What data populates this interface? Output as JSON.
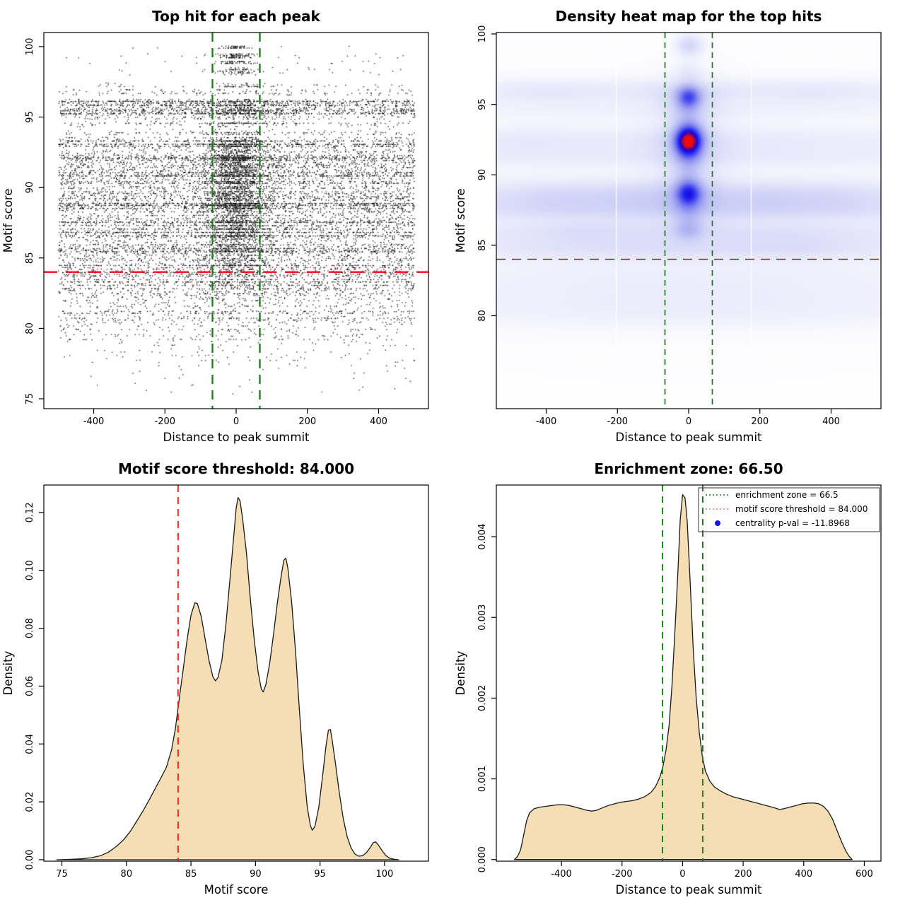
{
  "figure": {
    "background": "#ffffff"
  },
  "chart_data": [
    {
      "type": "scatter",
      "title": "Top hit for each peak",
      "xlabel": "Distance to peak summit",
      "ylabel": "Motif score",
      "xlim": [
        -540,
        540
      ],
      "ylim": [
        74.3,
        101.0
      ],
      "xticks": {
        "values": [
          -400,
          -200,
          0,
          200,
          400
        ],
        "labels": [
          "-400",
          "-200",
          "0",
          "200",
          "400"
        ]
      },
      "yticks": {
        "values": [
          75,
          80,
          85,
          90,
          95,
          100
        ],
        "labels": [
          "75",
          "80",
          "85",
          "90",
          "95",
          "100"
        ]
      },
      "point_color": "#000000",
      "seed": 42,
      "x_range": [
        -500,
        500
      ],
      "bands": [
        [
          99.93,
          100.08,
          55,
          0.9,
          20
        ],
        [
          99.25,
          99.6,
          120,
          0.82,
          28
        ],
        [
          98.85,
          99.05,
          70,
          0.85,
          25
        ],
        [
          98.4,
          98.6,
          40,
          0.85,
          22
        ],
        [
          98.05,
          98.3,
          60,
          0.8,
          26
        ],
        [
          97.2,
          97.5,
          80,
          0.6,
          40
        ],
        [
          96.6,
          97.0,
          150,
          0.2,
          120
        ],
        [
          95.9,
          96.3,
          650,
          0.16,
          60
        ],
        [
          95.35,
          95.85,
          800,
          0.2,
          55
        ],
        [
          94.9,
          95.3,
          420,
          0.2,
          55
        ],
        [
          94.35,
          94.8,
          200,
          0.3,
          60
        ],
        [
          93.8,
          94.25,
          170,
          0.35,
          60
        ],
        [
          92.85,
          93.6,
          1050,
          0.28,
          45
        ],
        [
          90.85,
          92.8,
          2600,
          0.3,
          42
        ],
        [
          88.05,
          90.8,
          3300,
          0.28,
          45
        ],
        [
          86.0,
          88.0,
          2200,
          0.26,
          48
        ],
        [
          84.5,
          85.95,
          1650,
          0.22,
          50
        ],
        [
          83.5,
          84.45,
          820,
          0.15,
          60
        ],
        [
          82.0,
          83.45,
          900,
          0.12,
          70
        ],
        [
          80.5,
          81.95,
          520,
          0.1,
          80
        ],
        [
          79.0,
          80.45,
          270,
          0.08,
          90
        ],
        [
          77.4,
          78.95,
          90,
          0.1,
          100
        ],
        [
          75.4,
          77.35,
          35,
          0.15,
          110
        ]
      ],
      "vlines": {
        "x": [
          -66.5,
          66.5
        ],
        "color": "#1c7a1c",
        "dash": "13 9",
        "width": 2.3
      },
      "hline": {
        "y": 84,
        "color": "#e32222",
        "dash": "19 12",
        "width": 2.5
      }
    },
    {
      "type": "heatmap",
      "title": "Density heat map for the top hits",
      "xlabel": "Distance to peak summit",
      "ylabel": "Motif score",
      "xlim": [
        -540,
        540
      ],
      "ylim": [
        73.4,
        100.1
      ],
      "xticks": {
        "values": [
          -400,
          -200,
          0,
          200,
          400
        ],
        "labels": [
          "-400",
          "-200",
          "0",
          "200",
          "400"
        ]
      },
      "yticks": {
        "values": [
          80,
          85,
          90,
          95,
          100
        ],
        "labels": [
          "80",
          "85",
          "90",
          "95",
          "100"
        ]
      },
      "colormap": [
        [
          0,
          "#ffffff"
        ],
        [
          0.07,
          "#f6f6fd"
        ],
        [
          0.18,
          "#e7e8fb"
        ],
        [
          0.32,
          "#cdd0f6"
        ],
        [
          0.46,
          "#a9adf1"
        ],
        [
          0.58,
          "#7e83ee"
        ],
        [
          0.68,
          "#4a4cee"
        ],
        [
          0.77,
          "#1b1bee"
        ],
        [
          0.84,
          "#1a00cf"
        ],
        [
          0.87,
          "#2e00bd"
        ],
        [
          0.91,
          "#d40f0f"
        ],
        [
          1,
          "#f50a0a"
        ]
      ],
      "blobs": [
        [
          0,
          95.9,
          0.16,
          650,
          0.6
        ],
        [
          0,
          94.6,
          0.07,
          650,
          0.5
        ],
        [
          0,
          92.4,
          0.14,
          650,
          0.7
        ],
        [
          0,
          91.2,
          0.1,
          650,
          0.5
        ],
        [
          0,
          88.5,
          0.26,
          650,
          0.75
        ],
        [
          0,
          87.4,
          0.2,
          650,
          0.55
        ],
        [
          0,
          86.0,
          0.18,
          650,
          0.55
        ],
        [
          0,
          84.8,
          0.2,
          650,
          0.6
        ],
        [
          0,
          82.3,
          0.1,
          650,
          1.3
        ],
        [
          0,
          80.3,
          0.08,
          650,
          0.9
        ],
        [
          0,
          88.0,
          0.05,
          650,
          6.0
        ],
        [
          -380,
          88.4,
          0.07,
          90,
          0.8
        ],
        [
          -160,
          88.5,
          0.06,
          80,
          0.8
        ],
        [
          240,
          88.4,
          0.07,
          100,
          0.8
        ],
        [
          430,
          88.3,
          0.05,
          80,
          0.8
        ],
        [
          -300,
          86.0,
          0.05,
          90,
          0.6
        ],
        [
          300,
          85.0,
          0.05,
          90,
          0.6
        ],
        [
          -420,
          95.9,
          0.05,
          90,
          0.6
        ],
        [
          380,
          95.9,
          0.04,
          90,
          0.6
        ],
        [
          -460,
          92.3,
          0.05,
          90,
          0.8
        ],
        [
          3,
          99.2,
          0.33,
          26,
          0.55
        ],
        [
          0,
          97.3,
          0.12,
          24,
          0.45
        ],
        [
          0,
          95.5,
          0.8,
          25,
          0.6
        ],
        [
          0,
          95.5,
          0.12,
          60,
          1.2
        ],
        [
          0,
          94.0,
          0.15,
          30,
          0.8
        ],
        [
          0,
          92.4,
          1.45,
          28,
          0.8
        ],
        [
          0,
          92.4,
          0.18,
          70,
          2.2
        ],
        [
          0,
          90.5,
          0.22,
          28,
          0.9
        ],
        [
          0,
          88.7,
          0.82,
          26,
          0.65
        ],
        [
          0,
          88.7,
          0.14,
          65,
          1.5
        ],
        [
          0,
          87.3,
          0.18,
          28,
          0.7
        ],
        [
          0,
          86.1,
          0.3,
          30,
          0.55
        ]
      ],
      "seams_x": [
        -203,
        176
      ],
      "vlines": {
        "x": [
          -66.5,
          66.5
        ],
        "color": "#1c7a1c",
        "dash": "8 6",
        "width": 1.7
      },
      "hline": {
        "y": 84,
        "color": "#e32222",
        "dash": "13 9",
        "width": 1.9
      }
    },
    {
      "type": "density",
      "title": "Motif score threshold: 84.000",
      "xlabel": "Motif score",
      "ylabel": "Density",
      "xlim": [
        73.6,
        103.4
      ],
      "ylim": [
        -0.0005,
        0.1295
      ],
      "xticks": {
        "values": [
          75,
          80,
          85,
          90,
          95,
          100
        ],
        "labels": [
          "75",
          "80",
          "85",
          "90",
          "95",
          "100"
        ]
      },
      "yticks": {
        "values": [
          0,
          0.02,
          0.04,
          0.06,
          0.08,
          0.1,
          0.12
        ],
        "labels": [
          "0.00",
          "0.02",
          "0.04",
          "0.06",
          "0.08",
          "0.10",
          "0.12"
        ]
      },
      "fill": "#f5deb3",
      "stroke": "#1a1a1a",
      "curve": [
        [
          74.6,
          0
        ],
        [
          75.5,
          0.0001
        ],
        [
          76.5,
          0.0003
        ],
        [
          77.3,
          0.0007
        ],
        [
          78,
          0.0014
        ],
        [
          78.6,
          0.0026
        ],
        [
          79.2,
          0.0045
        ],
        [
          79.8,
          0.007
        ],
        [
          80.3,
          0.0098
        ],
        [
          80.8,
          0.0133
        ],
        [
          81.3,
          0.017
        ],
        [
          81.8,
          0.021
        ],
        [
          82.3,
          0.0252
        ],
        [
          82.7,
          0.0285
        ],
        [
          83.1,
          0.032
        ],
        [
          83.5,
          0.038
        ],
        [
          83.8,
          0.0455
        ],
        [
          84.1,
          0.056
        ],
        [
          84.4,
          0.066
        ],
        [
          84.7,
          0.076
        ],
        [
          85,
          0.0845
        ],
        [
          85.3,
          0.0888
        ],
        [
          85.5,
          0.0885
        ],
        [
          85.8,
          0.084
        ],
        [
          86.1,
          0.0762
        ],
        [
          86.4,
          0.0688
        ],
        [
          86.7,
          0.0632
        ],
        [
          86.9,
          0.0618
        ],
        [
          87.1,
          0.063
        ],
        [
          87.4,
          0.069
        ],
        [
          87.7,
          0.081
        ],
        [
          88,
          0.096
        ],
        [
          88.3,
          0.111
        ],
        [
          88.5,
          0.1215
        ],
        [
          88.65,
          0.1252
        ],
        [
          88.8,
          0.124
        ],
        [
          89,
          0.118
        ],
        [
          89.3,
          0.106
        ],
        [
          89.6,
          0.09
        ],
        [
          89.9,
          0.076
        ],
        [
          90.2,
          0.065
        ],
        [
          90.45,
          0.059
        ],
        [
          90.6,
          0.058
        ],
        [
          90.8,
          0.0605
        ],
        [
          91.1,
          0.068
        ],
        [
          91.4,
          0.078
        ],
        [
          91.7,
          0.089
        ],
        [
          92,
          0.0985
        ],
        [
          92.2,
          0.1035
        ],
        [
          92.35,
          0.1042
        ],
        [
          92.5,
          0.101
        ],
        [
          92.8,
          0.089
        ],
        [
          93.1,
          0.072
        ],
        [
          93.4,
          0.052
        ],
        [
          93.7,
          0.033
        ],
        [
          94,
          0.0185
        ],
        [
          94.25,
          0.0118
        ],
        [
          94.4,
          0.0102
        ],
        [
          94.6,
          0.0115
        ],
        [
          94.9,
          0.018
        ],
        [
          95.2,
          0.029
        ],
        [
          95.45,
          0.039
        ],
        [
          95.65,
          0.0448
        ],
        [
          95.8,
          0.045
        ],
        [
          95.95,
          0.041
        ],
        [
          96.2,
          0.033
        ],
        [
          96.5,
          0.023
        ],
        [
          96.8,
          0.0142
        ],
        [
          97.1,
          0.008
        ],
        [
          97.4,
          0.0041
        ],
        [
          97.7,
          0.002
        ],
        [
          98,
          0.0012
        ],
        [
          98.3,
          0.0014
        ],
        [
          98.6,
          0.0025
        ],
        [
          98.9,
          0.0043
        ],
        [
          99.1,
          0.0058
        ],
        [
          99.3,
          0.0062
        ],
        [
          99.5,
          0.0052
        ],
        [
          99.8,
          0.0032
        ],
        [
          100.1,
          0.0014
        ],
        [
          100.4,
          0.0005
        ],
        [
          100.8,
          0.0001
        ],
        [
          101.1,
          0
        ]
      ],
      "vlines": {
        "x": [
          84
        ],
        "color": "#e32222",
        "dash": "10 7",
        "width": 1.9
      }
    },
    {
      "type": "density",
      "title": "Enrichment zone: 66.50",
      "xlabel": "Distance to peak summit",
      "ylabel": "Density",
      "xlim": [
        -615,
        655
      ],
      "ylim": [
        -2e-05,
        0.00464
      ],
      "xticks": {
        "values": [
          -400,
          -200,
          0,
          200,
          400,
          600
        ],
        "labels": [
          "-400",
          "-200",
          "0",
          "200",
          "400",
          "600"
        ]
      },
      "yticks": {
        "values": [
          0,
          0.001,
          0.002,
          0.003,
          0.004
        ],
        "labels": [
          "0.000",
          "0.001",
          "0.002",
          "0.003",
          "0.004"
        ]
      },
      "fill": "#f5deb3",
      "stroke": "#1a1a1a",
      "curve": [
        [
          -555,
          0
        ],
        [
          -545,
          4e-05
        ],
        [
          -535,
          0.00012
        ],
        [
          -525,
          0.0003
        ],
        [
          -515,
          0.00048
        ],
        [
          -505,
          0.00058
        ],
        [
          -490,
          0.00063
        ],
        [
          -470,
          0.00065
        ],
        [
          -450,
          0.00066
        ],
        [
          -430,
          0.00067
        ],
        [
          -410,
          0.00068
        ],
        [
          -395,
          0.00068
        ],
        [
          -375,
          0.00067
        ],
        [
          -355,
          0.00065
        ],
        [
          -335,
          0.00063
        ],
        [
          -315,
          0.00061
        ],
        [
          -300,
          0.0006
        ],
        [
          -285,
          0.00061
        ],
        [
          -265,
          0.00064
        ],
        [
          -245,
          0.00067
        ],
        [
          -225,
          0.00069
        ],
        [
          -205,
          0.00071
        ],
        [
          -185,
          0.00072
        ],
        [
          -165,
          0.00073
        ],
        [
          -145,
          0.00075
        ],
        [
          -125,
          0.00078
        ],
        [
          -105,
          0.00083
        ],
        [
          -90,
          0.0009
        ],
        [
          -75,
          0.00102
        ],
        [
          -65,
          0.00115
        ],
        [
          -55,
          0.00135
        ],
        [
          -45,
          0.00165
        ],
        [
          -35,
          0.00215
        ],
        [
          -25,
          0.00285
        ],
        [
          -15,
          0.0036
        ],
        [
          -8,
          0.0042
        ],
        [
          0,
          0.00452
        ],
        [
          8,
          0.00448
        ],
        [
          15,
          0.0042
        ],
        [
          25,
          0.00345
        ],
        [
          35,
          0.00262
        ],
        [
          45,
          0.002
        ],
        [
          55,
          0.00158
        ],
        [
          65,
          0.00128
        ],
        [
          75,
          0.0011
        ],
        [
          90,
          0.00097
        ],
        [
          105,
          0.0009
        ],
        [
          125,
          0.00085
        ],
        [
          145,
          0.00081
        ],
        [
          165,
          0.00078
        ],
        [
          185,
          0.00076
        ],
        [
          205,
          0.00074
        ],
        [
          225,
          0.00072
        ],
        [
          245,
          0.0007
        ],
        [
          265,
          0.00068
        ],
        [
          285,
          0.00066
        ],
        [
          305,
          0.00064
        ],
        [
          320,
          0.00062
        ],
        [
          335,
          0.00063
        ],
        [
          355,
          0.00065
        ],
        [
          375,
          0.00067
        ],
        [
          395,
          0.00069
        ],
        [
          415,
          0.0007
        ],
        [
          435,
          0.0007
        ],
        [
          450,
          0.00069
        ],
        [
          465,
          0.00066
        ],
        [
          480,
          0.0006
        ],
        [
          495,
          0.0005
        ],
        [
          510,
          0.00036
        ],
        [
          525,
          0.00022
        ],
        [
          540,
          0.0001
        ],
        [
          550,
          4e-05
        ],
        [
          560,
          0
        ]
      ],
      "vlines": {
        "x": [
          -66.5,
          66.5
        ],
        "color": "#1c7a1c",
        "dash": "9 7",
        "width": 1.9
      },
      "legend": {
        "border_color": "#333333",
        "items": [
          {
            "marker": "dotted-line",
            "color": "#1c7a1c",
            "label": "enrichment zone = 66.5"
          },
          {
            "marker": "dotted-line",
            "color": "#ee7777",
            "label": "motif score threshold = 84.000"
          },
          {
            "marker": "dot",
            "color": "#1414e6",
            "label": "centrality p-val = -11.8968"
          }
        ]
      }
    }
  ]
}
